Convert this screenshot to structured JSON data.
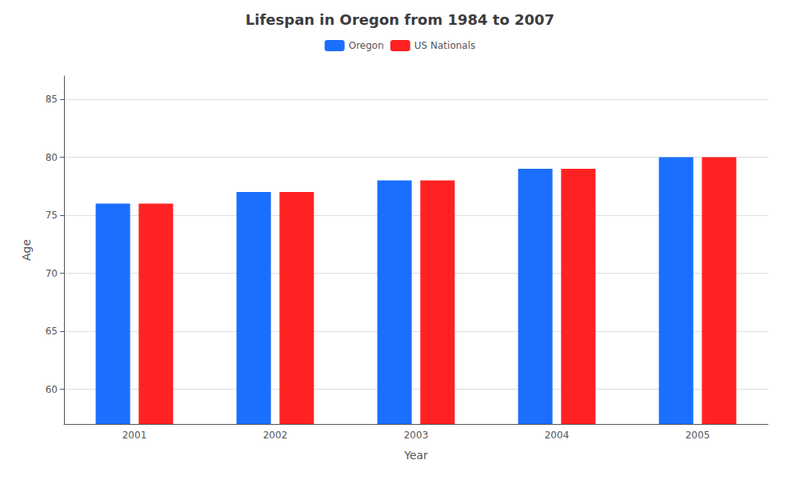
{
  "chart_data": {
    "type": "bar",
    "title": "Lifespan in Oregon from 1984 to 2007",
    "x_label": "Year",
    "y_label": "Age",
    "categories": [
      "2001",
      "2002",
      "2003",
      "2004",
      "2005"
    ],
    "series": [
      {
        "name": "Oregon",
        "color": "#1a6fff",
        "values": [
          76,
          77,
          78,
          79,
          80
        ]
      },
      {
        "name": "US Nationals",
        "color": "#ff2222",
        "values": [
          76,
          77,
          78,
          79,
          80
        ]
      }
    ],
    "ylim": [
      57,
      87
    ],
    "yticks": [
      60,
      65,
      70,
      75,
      80,
      85
    ],
    "grid": true,
    "legend": "top"
  }
}
